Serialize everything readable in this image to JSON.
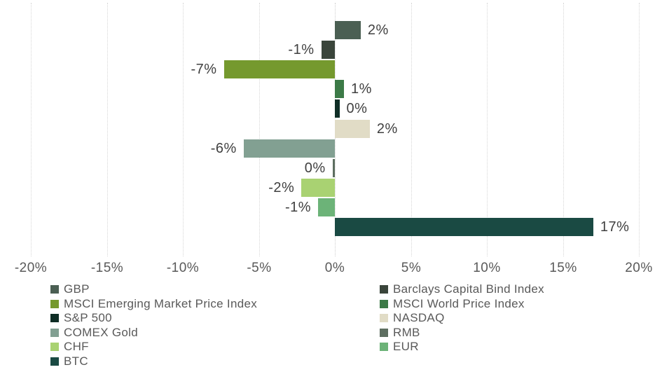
{
  "colors": {
    "background": "#ffffff",
    "gridline": "#d6d6d6",
    "axis_text": "#595959",
    "data_label_text": "#404040",
    "legend_text": "#595959"
  },
  "chart_data": {
    "type": "bar",
    "orientation": "horizontal",
    "title": "",
    "xlabel": "",
    "ylabel": "",
    "xlim": [
      -20,
      20
    ],
    "x_ticks": [
      {
        "label": "-20%",
        "value": -20
      },
      {
        "label": "-15%",
        "value": -15
      },
      {
        "label": "-10%",
        "value": -10
      },
      {
        "label": "-5%",
        "value": -5
      },
      {
        "label": "0%",
        "value": 0
      },
      {
        "label": "5%",
        "value": 5
      },
      {
        "label": "10%",
        "value": 10
      },
      {
        "label": "15%",
        "value": 15
      },
      {
        "label": "20%",
        "value": 20
      }
    ],
    "grid": true,
    "legend_position": "bottom",
    "legend_columns": 2,
    "series": [
      {
        "name": "GBP",
        "value": 2,
        "label": "2%",
        "bar_extent": 1.7,
        "color": "#4b5f53"
      },
      {
        "name": "Barclays Capital Bind Index",
        "value": -1,
        "label": "-1%",
        "bar_extent": -0.9,
        "color": "#3a453b"
      },
      {
        "name": "MSCI Emerging Market Price Index",
        "value": -7,
        "label": "-7%",
        "bar_extent": -7.3,
        "color": "#75992e"
      },
      {
        "name": "MSCI World Price Index",
        "value": 1,
        "label": "1%",
        "bar_extent": 0.6,
        "color": "#3c7a47"
      },
      {
        "name": "S&P 500",
        "value": 0,
        "label": "0%",
        "bar_extent": 0.3,
        "color": "#0f2e26"
      },
      {
        "name": "NASDAQ",
        "value": 2,
        "label": "2%",
        "bar_extent": 2.3,
        "color": "#e1dcc6"
      },
      {
        "name": "COMEX Gold",
        "value": -6,
        "label": "-6%",
        "bar_extent": -6.0,
        "color": "#82a092"
      },
      {
        "name": "RMB",
        "value": 0,
        "label": "0%",
        "bar_extent": -0.15,
        "color": "#5d6e60"
      },
      {
        "name": "CHF",
        "value": -2,
        "label": "-2%",
        "bar_extent": -2.2,
        "color": "#a9d272"
      },
      {
        "name": "EUR",
        "value": -1,
        "label": "-1%",
        "bar_extent": -1.1,
        "color": "#6cb378"
      },
      {
        "name": "BTC",
        "value": 17,
        "label": "17%",
        "bar_extent": 17.0,
        "color": "#1a4a43"
      }
    ]
  }
}
